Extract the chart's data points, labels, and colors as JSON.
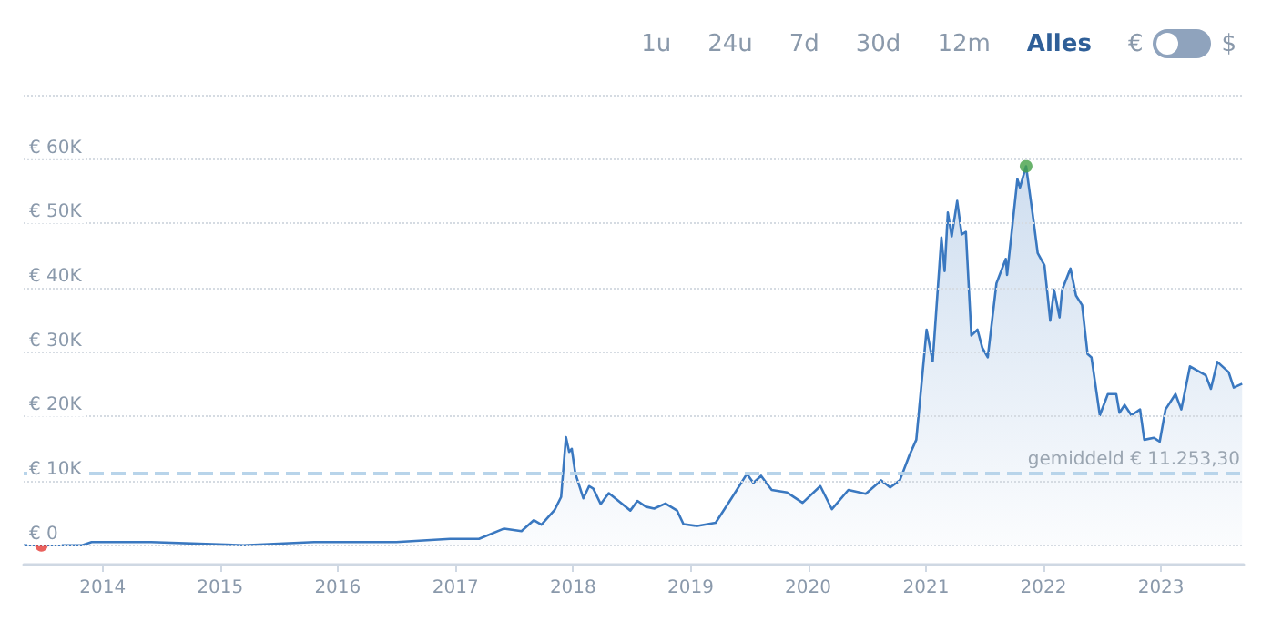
{
  "chart_data": {
    "type": "area",
    "annotations": [
      "1u",
      "24u",
      "7d",
      "30d",
      "12m",
      "Alles",
      "€",
      "$"
    ],
    "series": [
      {
        "color": "#3a78c0",
        "x": [
          "2013-05-01",
          "2013-06-25",
          "2013-10-30",
          "2013-11-28",
          "2014-01-01",
          "2014-04-25",
          "2014-06-01",
          "2015-03-15",
          "2015-10-20",
          "2016-04-20",
          "2016-07-01",
          "2016-12-15",
          "2017-03-15",
          "2017-06-01",
          "2017-07-25",
          "2017-09-01",
          "2017-09-25",
          "2017-11-05",
          "2017-11-25",
          "2017-12-10",
          "2017-12-20",
          "2017-12-28",
          "2018-01-08",
          "2018-02-02",
          "2018-02-20",
          "2018-03-05",
          "2018-03-28",
          "2018-04-22",
          "2018-05-22",
          "2018-06-28",
          "2018-07-20",
          "2018-08-15",
          "2018-09-10",
          "2018-10-15",
          "2018-11-20",
          "2018-12-10",
          "2019-01-22",
          "2019-03-20",
          "2019-05-08",
          "2019-06-25",
          "2019-07-15",
          "2019-08-08",
          "2019-09-10",
          "2019-10-28",
          "2019-12-15",
          "2020-02-08",
          "2020-03-15",
          "2020-05-05",
          "2020-06-28",
          "2020-08-15",
          "2020-09-12",
          "2020-10-12",
          "2020-11-10",
          "2020-12-02",
          "2021-01-03",
          "2021-01-22",
          "2021-02-18",
          "2021-02-28",
          "2021-03-10",
          "2021-03-22",
          "2021-04-08",
          "2021-04-22",
          "2021-05-05",
          "2021-05-22",
          "2021-06-10",
          "2021-06-25",
          "2021-07-12",
          "2021-08-08",
          "2021-09-06",
          "2021-09-10",
          "2021-10-12",
          "2021-10-20",
          "2021-11-08",
          "2021-11-28",
          "2021-12-14",
          "2022-01-04",
          "2022-01-22",
          "2022-02-03",
          "2022-02-20",
          "2022-02-28",
          "2022-03-26",
          "2022-04-12",
          "2022-05-01",
          "2022-05-18",
          "2022-05-30",
          "2022-06-25",
          "2022-07-20",
          "2022-08-15",
          "2022-08-25",
          "2022-09-10",
          "2022-10-01",
          "2022-10-28",
          "2022-11-10",
          "2022-12-10",
          "2022-12-28",
          "2023-01-15",
          "2023-02-15",
          "2023-03-05",
          "2023-04-01",
          "2023-05-20",
          "2023-06-05",
          "2023-06-25",
          "2023-07-30",
          "2023-08-15",
          "2023-09-10"
        ],
        "values": [
          0,
          0,
          0,
          500,
          500,
          500,
          500,
          0,
          500,
          500,
          500,
          1000,
          1000,
          2600,
          2200,
          3900,
          3200,
          5500,
          7500,
          16800,
          14500,
          15000,
          11200,
          7300,
          9200,
          8800,
          6400,
          8100,
          6900,
          5400,
          6900,
          6000,
          5700,
          6500,
          5400,
          3300,
          3000,
          3500,
          7300,
          11100,
          9700,
          10800,
          8600,
          8200,
          6600,
          9200,
          5600,
          8600,
          8000,
          10100,
          9000,
          10100,
          13900,
          16400,
          33500,
          28600,
          47800,
          42600,
          51700,
          48000,
          53500,
          48300,
          48700,
          32600,
          33500,
          30700,
          29200,
          40700,
          44500,
          42000,
          56900,
          55600,
          58900,
          51600,
          45400,
          43500,
          34900,
          39700,
          35400,
          39700,
          43000,
          38800,
          37300,
          29700,
          29200,
          20200,
          23500,
          23500,
          20600,
          21800,
          20200,
          21100,
          16400,
          16700,
          16100,
          21100,
          23500,
          21100,
          27800,
          26400,
          24300,
          28500,
          26900,
          24500,
          25100
        ]
      },
      {
        "type": "scatter",
        "marker": "circle",
        "x": [
          "2013-06-25",
          "2021-11-08"
        ],
        "values": [
          0,
          58900
        ],
        "colors": [
          "#e53935",
          "#43a047"
        ]
      }
    ],
    "xlim": [
      "2013-05-01",
      "2023-09-15"
    ],
    "xticks": [
      {
        "value": "2014-01-01",
        "label": "2014"
      },
      {
        "value": "2015-01-01",
        "label": "2015"
      },
      {
        "value": "2016-01-01",
        "label": "2016"
      },
      {
        "value": "2017-01-01",
        "label": "2017"
      },
      {
        "value": "2018-01-01",
        "label": "2018"
      },
      {
        "value": "2019-01-01",
        "label": "2019"
      },
      {
        "value": "2020-01-01",
        "label": "2020"
      },
      {
        "value": "2021-01-01",
        "label": "2021"
      },
      {
        "value": "2022-01-01",
        "label": "2022"
      },
      {
        "value": "2023-01-01",
        "label": "2023"
      }
    ],
    "ylim": [
      -3000,
      70000
    ],
    "yticks": [
      {
        "value": 0,
        "label": "€ 0"
      },
      {
        "value": 10000,
        "label": "€ 10K"
      },
      {
        "value": 20000,
        "label": "€ 20K"
      },
      {
        "value": 30000,
        "label": "€ 30K"
      },
      {
        "value": 40000,
        "label": "€ 40K"
      },
      {
        "value": 50000,
        "label": "€ 50K"
      },
      {
        "value": 60000,
        "label": "€ 60K"
      },
      {
        "value": 70000,
        "label": null
      }
    ],
    "ref_lines": [
      {
        "axis": "y",
        "value": 11253.3,
        "label": "gemiddeld € 11.253,30",
        "color": "#b8d4ea",
        "line_style": "dashed"
      }
    ],
    "grid": "y"
  }
}
